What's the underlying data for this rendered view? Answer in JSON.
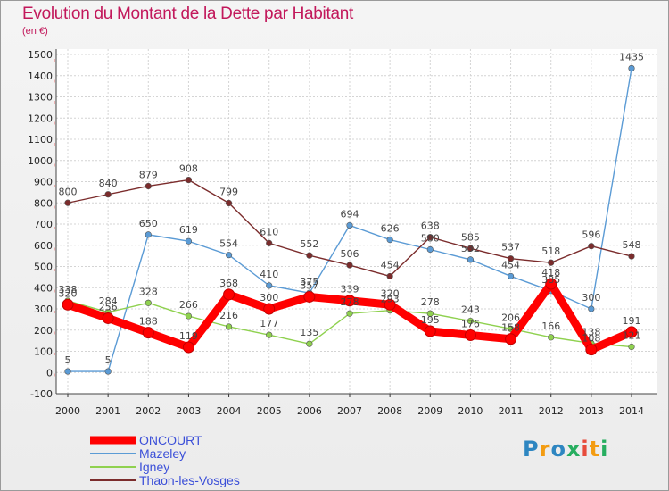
{
  "chart_data": {
    "type": "line",
    "title": "Evolution du Montant de la Dette par Habitant",
    "subtitle": "(en €)",
    "x": [
      "2000",
      "2001",
      "2002",
      "2003",
      "2004",
      "2005",
      "2006",
      "2007",
      "2008",
      "2009",
      "2010",
      "2011",
      "2012",
      "2013",
      "2014"
    ],
    "ylim": [
      -100,
      1500
    ],
    "yticks": [
      -100,
      0,
      100,
      200,
      300,
      400,
      500,
      600,
      700,
      800,
      900,
      1000,
      1100,
      1200,
      1300,
      1400,
      1500
    ],
    "grid": true,
    "legend_position": "bottom-left",
    "series": [
      {
        "name": "ONCOURT",
        "color": "#ff0000",
        "values": [
          320,
          256,
          188,
          119,
          368,
          300,
          357,
          339,
          320,
          195,
          176,
          158,
          418,
          108,
          191
        ]
      },
      {
        "name": "Mazeley",
        "color": "#5b9bd5",
        "values": [
          5,
          5,
          650,
          619,
          554,
          410,
          375,
          694,
          626,
          580,
          532,
          454,
          385,
          300,
          1435
        ]
      },
      {
        "name": "Igney",
        "color": "#8fd14f",
        "values": [
          338,
          284,
          328,
          266,
          216,
          177,
          135,
          278,
          293,
          278,
          243,
          206,
          166,
          138,
          121
        ]
      },
      {
        "name": "Thaon-les-Vosges",
        "color": "#7b2c2c",
        "values": [
          800,
          840,
          879,
          908,
          799,
          610,
          552,
          506,
          454,
          638,
          585,
          537,
          518,
          596,
          548
        ]
      }
    ]
  },
  "legend": {
    "label_color": "#3b4fd8"
  },
  "logo": {
    "letters": [
      "P",
      "r",
      "o",
      "x",
      "i",
      "t",
      "i"
    ],
    "colors": [
      "#2e86c1",
      "#f39c12",
      "#2e86c1",
      "#27ae60",
      "#e74c3c",
      "#f39c12",
      "#27ae60"
    ]
  }
}
